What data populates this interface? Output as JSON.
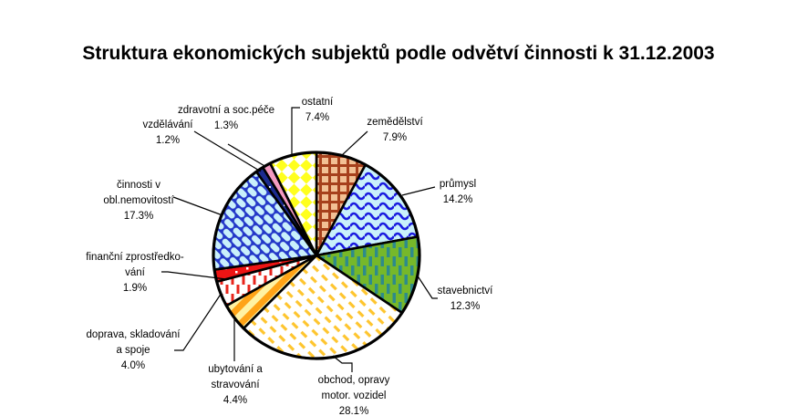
{
  "title": "Struktura ekonomických subjektů podle odvětví činnosti k 31.12.2003",
  "chart_data": {
    "type": "pie",
    "title": "Struktura ekonomických subjektů podle odvětví činnosti k 31.12.2003",
    "unit": "%",
    "start_position": "12-oclock",
    "direction": "clockwise",
    "total": 100.0,
    "slices": [
      {
        "id": "zemedelstvi",
        "name": "zemědělství",
        "label_lines": [
          "zemědělství"
        ],
        "value": 7.9,
        "pct_label": "7.9%",
        "pattern": "grid",
        "bg": "#f2c094",
        "fg": "#a6401c"
      },
      {
        "id": "prumysl",
        "name": "průmysl",
        "label_lines": [
          "průmysl"
        ],
        "value": 14.2,
        "pct_label": "14.2%",
        "pattern": "waves",
        "bg": "#c9f0fb",
        "fg": "#1a1adf"
      },
      {
        "id": "stavebnictvi",
        "name": "stavebnictví",
        "label_lines": [
          "stavebnictví"
        ],
        "value": 12.3,
        "pct_label": "12.3%",
        "pattern": "vertical-dashes",
        "bg": "#76b82a",
        "fg": "#2e8b8b"
      },
      {
        "id": "obchod",
        "name": "obchod, opravy motor. vozidel",
        "label_lines": [
          "obchod, opravy",
          "motor. vozidel"
        ],
        "value": 28.1,
        "pct_label": "28.1%",
        "pattern": "diagonal-dashes",
        "bg": "#ffffff",
        "fg": "#fec52e"
      },
      {
        "id": "ubytovani",
        "name": "ubytování a stravování",
        "label_lines": [
          "ubytování a",
          "stravování"
        ],
        "value": 4.4,
        "pct_label": "4.4%",
        "pattern": "diagonal-stripes",
        "bg": "#ffa317",
        "fg": "#fff2a3"
      },
      {
        "id": "doprava",
        "name": "doprava, skladování a spoje",
        "label_lines": [
          "doprava, skladování",
          "a spoje"
        ],
        "value": 4.0,
        "pct_label": "4.0%",
        "pattern": "vertical-dashes",
        "bg": "#ffffff",
        "fg": "#e8251c"
      },
      {
        "id": "financni",
        "name": "finanční zprostředkování",
        "label_lines": [
          "finanční zprostředko-",
          "vání"
        ],
        "value": 1.9,
        "pct_label": "1.9%",
        "pattern": "solid-dots",
        "bg": "#ee1414",
        "fg": "#ffffff"
      },
      {
        "id": "cinnosti-nemovitosti",
        "name": "činnosti v obl.nemovitostí",
        "label_lines": [
          "činnosti v",
          "obl.nemovitostí"
        ],
        "value": 17.3,
        "pct_label": "17.3%",
        "pattern": "diagonal-bricks",
        "bg": "#c9f0fb",
        "fg": "#2438c8"
      },
      {
        "id": "vzdelavani",
        "name": "vzdělávání",
        "label_lines": [
          "vzdělávání"
        ],
        "value": 1.2,
        "pct_label": "1.2%",
        "pattern": "solid-dots",
        "bg": "#1c2b8f",
        "fg": "#ffffff"
      },
      {
        "id": "zdravotni",
        "name": "zdravotní a soc.péče",
        "label_lines": [
          "zdravotní a soc.péče"
        ],
        "value": 1.3,
        "pct_label": "1.3%",
        "pattern": "solid",
        "bg": "#f49ac1",
        "fg": "#f49ac1"
      },
      {
        "id": "ostatni",
        "name": "ostatní",
        "label_lines": [
          "ostatní"
        ],
        "value": 7.4,
        "pct_label": "7.4%",
        "pattern": "diamonds",
        "bg": "#ffffff",
        "fg": "#ffff1e"
      }
    ]
  }
}
